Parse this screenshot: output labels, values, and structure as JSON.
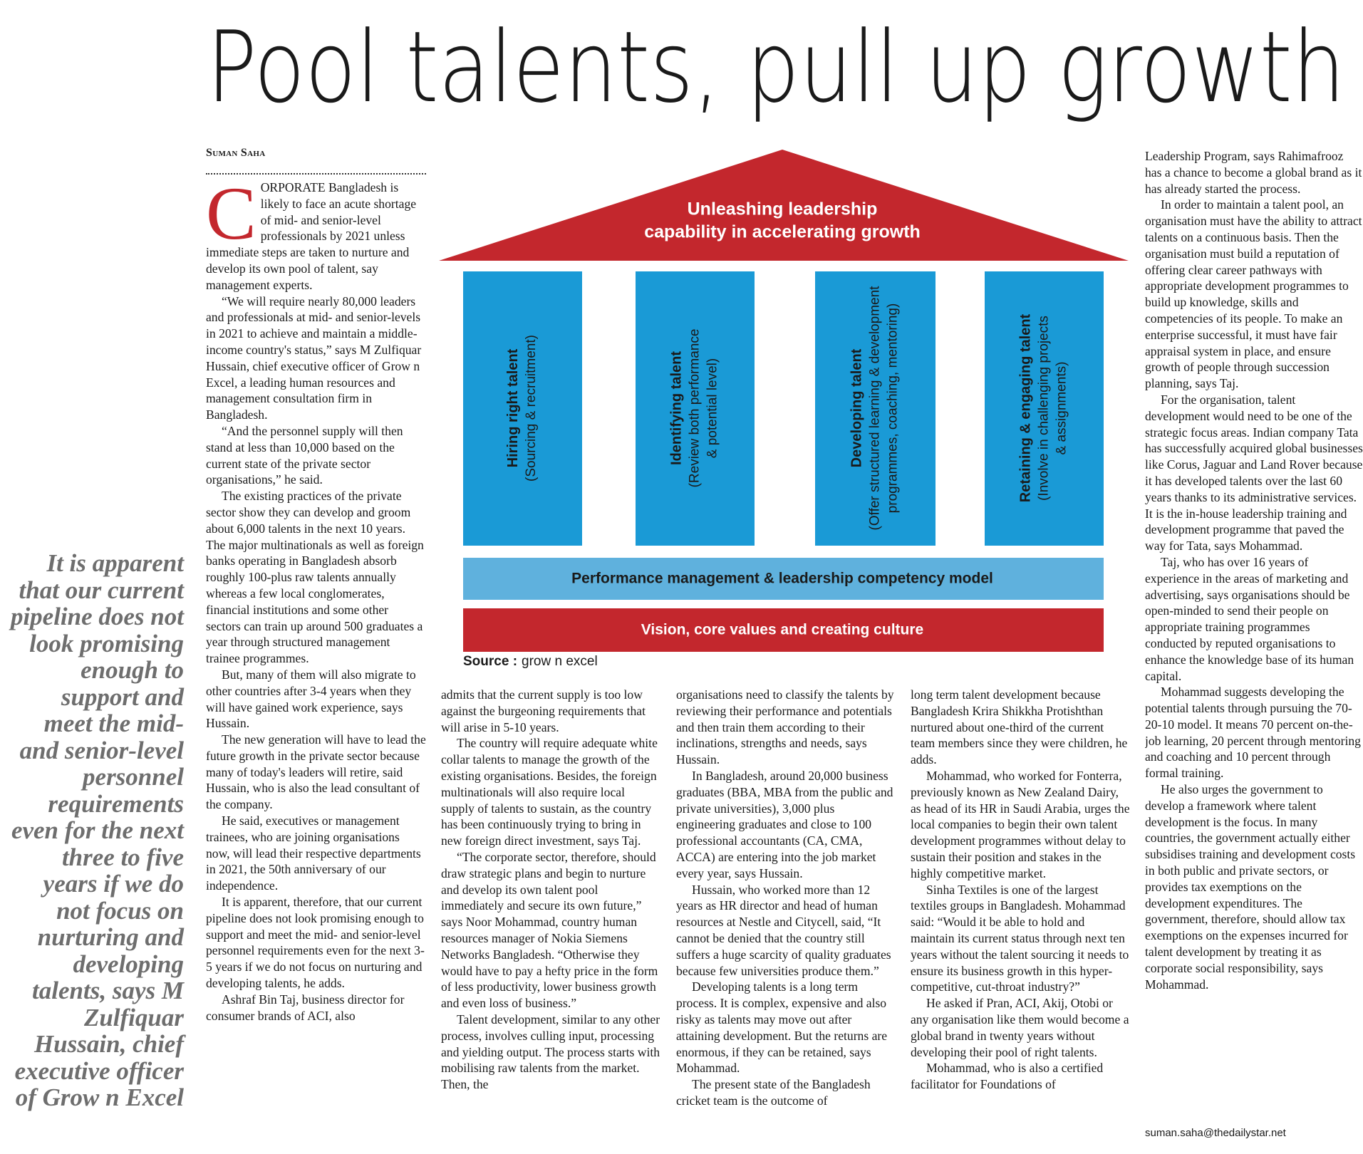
{
  "headline": "Pool talents, pull up growth",
  "byline": "Suman Saha",
  "pullquote": "It is apparent that our current pipeline does not look promising enough to support and meet the mid- and senior-level personnel requirements even for the next three to five years if we do not focus on nurturing and developing talents, says M Zulfiquar Hussain, chief executive officer of Grow n Excel",
  "diagram": {
    "roof": [
      "Unleashing leadership",
      "capability in accelerating growth"
    ],
    "pillars": [
      {
        "title": "Hiring right talent",
        "detail": [
          "(Sourcing & recruitment)"
        ]
      },
      {
        "title": "Identifying talent",
        "detail": [
          "(Review both performance",
          "& potential level)"
        ]
      },
      {
        "title": "Developing talent",
        "detail": [
          "(Offer structured learning & development",
          "programmes, coaching, mentoring)"
        ]
      },
      {
        "title": "Retaining & engaging talent",
        "detail": [
          "(Involve in challenging projects",
          "& assignments)"
        ]
      }
    ],
    "band_top": "Performance management & leadership competency model",
    "band_bottom": "Vision, core values and creating culture",
    "source_label": "Source :",
    "source": "grow n excel"
  },
  "body": {
    "drop_cap": "C",
    "columns": [
      {
        "paragraphs": [
          "ORPORATE Bangladesh is likely to face an acute shortage of mid- and senior-level professionals by 2021 unless immediate steps are taken to nurture and develop its own pool of talent, say management experts.",
          "“We will require nearly 80,000 leaders and professionals at mid- and senior-levels in 2021 to achieve and maintain a middle-income country's status,” says M Zulfiquar Hussain, chief executive officer of Grow n Excel, a leading human resources and management consultation firm in Bangladesh.",
          "“And the personnel supply will then stand at less than 10,000 based on the current state of the private sector organisations,” he said.",
          "The existing practices of the private sector show they can develop and groom about 6,000 talents in the next 10 years. The major multinationals as well as foreign banks operating in Bangladesh absorb roughly 100-plus raw talents annually whereas a few local conglomerates, financial institutions and some other sectors can train up around 500 graduates a year through structured management trainee programmes.",
          "But, many of them will also migrate to other countries after 3-4 years when they will have gained work experience, says Hussain.",
          "The new generation will have to lead the future growth in the private sector because many of today's leaders will retire, said Hussain, who is also the lead consultant of the company.",
          "He said, executives or management trainees, who are joining organisations now, will lead their respective departments in 2021, the 50th anniversary of our independence.",
          "It is apparent, therefore, that our current pipeline does not look promising enough to support and meet the mid- and senior-level personnel requirements even for the next 3-5 years if we do not focus on nurturing and developing talents, he adds.",
          "Ashraf Bin Taj, business director for consumer brands of ACI, also"
        ]
      },
      {
        "paragraphs": [
          "admits that the current supply is too low against the burgeoning requirements that will arise in 5-10 years.",
          "The country will require adequate white collar talents to manage the growth of the existing organisations. Besides, the foreign multinationals will also require local supply of talents to sustain, as the country has been continuously trying to bring in new foreign direct investment, says Taj.",
          "“The corporate sector, therefore, should draw strategic plans and begin to nurture and develop its own talent pool immediately and secure its own future,” says Noor Mohammad, country human resources manager of Nokia Siemens Networks Bangladesh. “Otherwise they would have to pay a hefty price in the form of less productivity, lower business growth and even loss of business.”",
          "Talent development, similar to any other process, involves culling input, processing and yielding output. The process starts with mobilising raw talents from the market. Then, the"
        ]
      },
      {
        "paragraphs": [
          "organisations need to classify the talents by reviewing their performance and potentials and then train them according to their inclinations, strengths and needs, says Hussain.",
          "In Bangladesh, around 20,000 business graduates (BBA, MBA from the public and private universities), 3,000 plus engineering graduates and close to 100 professional accountants (CA, CMA, ACCA) are entering into the job market every year, says Hussain.",
          "Hussain, who worked more than 12 years as HR director and head of human resources at Nestle and Citycell, said, “It cannot be denied that the country still suffers a huge scarcity of quality graduates because few universities produce them.”",
          "Developing talents is a long term process. It is complex, expensive and also risky as talents may move out after attaining development. But the returns are enormous, if they can be retained, says Mohammad.",
          "The present state of the Bangladesh cricket team is the outcome of"
        ]
      },
      {
        "paragraphs": [
          "long term talent development because Bangladesh Krira Shikkha Protishthan nurtured about one-third of the current team members since they were children, he adds.",
          "Mohammad, who worked for Fonterra, previously known as New Zealand Dairy, as head of its HR in Saudi Arabia, urges the local companies to begin their own talent development programmes without delay to sustain their position and stakes in the highly competitive market.",
          "Sinha Textiles is one of the largest textiles groups in Bangladesh. Mohammad said: “Would it be able to hold and maintain its current status through next ten years without the talent sourcing it needs to ensure its business growth in this hyper-competitive, cut-throat industry?”",
          "He asked if Pran, ACI, Akij, Otobi or any organisation like them would become a global brand in twenty years without developing their pool of right talents.",
          "Mohammad, who is also a certified facilitator for Foundations of"
        ]
      },
      {
        "paragraphs": [
          "Leadership Program, says Rahimafrooz has a chance to become a global brand as it has already started the process.",
          "In order to maintain a talent pool, an organisation must have the ability to attract talents on a continuous basis. Then the organisation must build a reputation of offering clear career pathways with appropriate development programmes to build up knowledge, skills and competencies of its people. To make an enterprise successful, it must have fair appraisal system in place, and ensure growth of people through succession planning, says Taj.",
          "For the organisation, talent development would need to be one of the strategic focus areas. Indian company Tata has successfully acquired global businesses like Corus, Jaguar and Land Rover because it has developed talents over the last 60 years thanks to its administrative services. It is the in-house leadership training and development programme that paved the way for Tata, says Mohammad.",
          "Taj, who has over 16 years of experience in the areas of marketing and advertising, says organisations should be open-minded to send their people on appropriate training programmes conducted by reputed organisations to enhance the knowledge base of its human capital.",
          "Mohammad suggests developing the potential talents through pursuing the 70-20-10 model. It means 70 percent on-the-job learning, 20 percent through mentoring and coaching and 10 percent through formal training.",
          "He also urges the government to develop a framework where talent development is the focus. In many countries, the government actually either subsidises training and development costs in both public and private sectors, or provides tax exemptions on the development expenditures. The government, therefore, should allow tax exemptions on the expenses incurred for talent development by treating it as corporate social responsibility, says Mohammad."
        ]
      }
    ],
    "email": "suman.saha@thedailystar.net"
  }
}
